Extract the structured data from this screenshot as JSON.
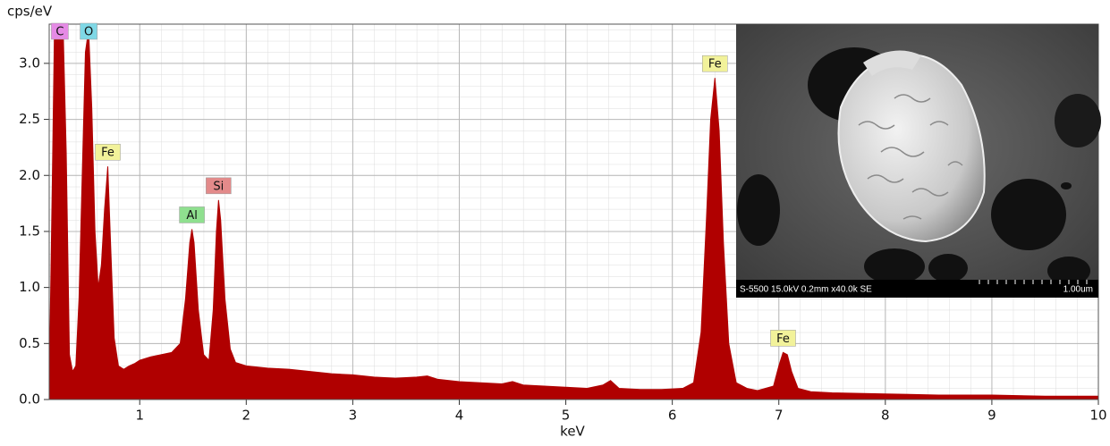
{
  "chart_data": {
    "type": "area",
    "y_label": "cps/eV",
    "x_label": "keV",
    "color": "#b00000",
    "x": [
      0.15,
      0.18,
      0.2,
      0.22,
      0.25,
      0.28,
      0.31,
      0.34,
      0.37,
      0.4,
      0.43,
      0.46,
      0.49,
      0.52,
      0.55,
      0.58,
      0.61,
      0.64,
      0.67,
      0.7,
      0.73,
      0.76,
      0.8,
      0.85,
      0.9,
      0.95,
      1.0,
      1.1,
      1.2,
      1.3,
      1.38,
      1.43,
      1.47,
      1.49,
      1.51,
      1.55,
      1.6,
      1.65,
      1.69,
      1.72,
      1.74,
      1.76,
      1.8,
      1.85,
      1.9,
      2.0,
      2.2,
      2.4,
      2.6,
      2.8,
      3.0,
      3.2,
      3.4,
      3.6,
      3.7,
      3.8,
      4.0,
      4.2,
      4.4,
      4.5,
      4.6,
      4.8,
      5.0,
      5.2,
      5.35,
      5.42,
      5.5,
      5.7,
      5.9,
      6.1,
      6.2,
      6.27,
      6.32,
      6.36,
      6.4,
      6.44,
      6.48,
      6.53,
      6.6,
      6.7,
      6.8,
      6.95,
      7.0,
      7.04,
      7.08,
      7.12,
      7.18,
      7.3,
      7.5,
      8.0,
      8.5,
      9.0,
      9.5,
      10.0
    ],
    "values": [
      0.1,
      2.0,
      3.35,
      3.35,
      3.35,
      3.35,
      2.2,
      0.4,
      0.25,
      0.3,
      0.9,
      2.0,
      3.1,
      3.3,
      2.6,
      1.5,
      1.0,
      1.2,
      1.7,
      2.08,
      1.3,
      0.55,
      0.3,
      0.27,
      0.3,
      0.32,
      0.35,
      0.38,
      0.4,
      0.42,
      0.5,
      0.9,
      1.4,
      1.52,
      1.4,
      0.8,
      0.4,
      0.35,
      0.8,
      1.5,
      1.78,
      1.6,
      0.9,
      0.45,
      0.33,
      0.3,
      0.28,
      0.27,
      0.25,
      0.23,
      0.22,
      0.2,
      0.19,
      0.2,
      0.21,
      0.18,
      0.16,
      0.15,
      0.14,
      0.16,
      0.13,
      0.12,
      0.11,
      0.1,
      0.13,
      0.17,
      0.1,
      0.09,
      0.09,
      0.1,
      0.15,
      0.6,
      1.6,
      2.5,
      2.87,
      2.4,
      1.4,
      0.5,
      0.15,
      0.1,
      0.08,
      0.12,
      0.3,
      0.42,
      0.4,
      0.25,
      0.1,
      0.07,
      0.06,
      0.05,
      0.04,
      0.04,
      0.03,
      0.03
    ],
    "xlim": [
      0.15,
      10
    ],
    "ylim": [
      0,
      3.35
    ],
    "xticks": [
      1,
      2,
      3,
      4,
      5,
      6,
      7,
      8,
      9,
      10
    ],
    "yticks": [
      {
        "value": 0,
        "label": "0.0"
      },
      0.5,
      {
        "value": 1,
        "label": "1.0"
      },
      1.5,
      {
        "value": 2,
        "label": "2.0"
      },
      2.5,
      {
        "value": 3,
        "label": "3.0"
      }
    ],
    "grid": true,
    "annotations": [
      {
        "text": "C",
        "x": 0.25,
        "y": 3.35,
        "color": "#e58ae5"
      },
      {
        "text": "O",
        "x": 0.52,
        "y": 3.35,
        "color": "#7fd8e6"
      },
      {
        "text": "Fe",
        "x": 0.7,
        "y": 2.08,
        "color": "#f2f29a"
      },
      {
        "text": "Al",
        "x": 1.49,
        "y": 1.52,
        "color": "#8fe08f"
      },
      {
        "text": "Si",
        "x": 1.74,
        "y": 1.78,
        "color": "#e38a8a"
      },
      {
        "text": "Fe",
        "x": 6.4,
        "y": 2.87,
        "color": "#f2f29a"
      },
      {
        "text": "Fe",
        "x": 7.04,
        "y": 0.42,
        "color": "#f2f29a"
      }
    ],
    "inset": {
      "caption": "S-5500 15.0kV 0.2mm x40.0k SE",
      "scale": "1.00um"
    }
  }
}
